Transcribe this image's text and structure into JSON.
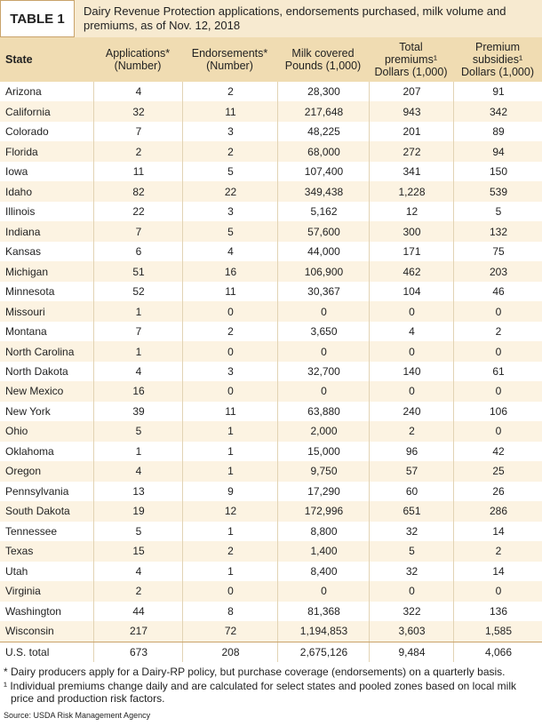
{
  "header": {
    "label": "TABLE 1",
    "title": "Dairy Revenue Protection applications, endorsements purchased, milk volume and premiums, as of Nov. 12, 2018"
  },
  "table": {
    "columns": [
      [
        "State"
      ],
      [
        "Applications*",
        "(Number)"
      ],
      [
        "Endorsements*",
        "(Number)"
      ],
      [
        "Milk covered",
        "Pounds (1,000)"
      ],
      [
        "Total",
        "premiums¹",
        "Dollars (1,000)"
      ],
      [
        "Premium",
        "subsidies¹",
        "Dollars (1,000)"
      ]
    ],
    "rows": [
      [
        "Arizona",
        "4",
        "2",
        "28,300",
        "207",
        "91"
      ],
      [
        "California",
        "32",
        "11",
        "217,648",
        "943",
        "342"
      ],
      [
        "Colorado",
        "7",
        "3",
        "48,225",
        "201",
        "89"
      ],
      [
        "Florida",
        "2",
        "2",
        "68,000",
        "272",
        "94"
      ],
      [
        "Iowa",
        "11",
        "5",
        "107,400",
        "341",
        "150"
      ],
      [
        "Idaho",
        "82",
        "22",
        "349,438",
        "1,228",
        "539"
      ],
      [
        "Illinois",
        "22",
        "3",
        "5,162",
        "12",
        "5"
      ],
      [
        "Indiana",
        "7",
        "5",
        "57,600",
        "300",
        "132"
      ],
      [
        "Kansas",
        "6",
        "4",
        "44,000",
        "171",
        "75"
      ],
      [
        "Michigan",
        "51",
        "16",
        "106,900",
        "462",
        "203"
      ],
      [
        "Minnesota",
        "52",
        "11",
        "30,367",
        "104",
        "46"
      ],
      [
        "Missouri",
        "1",
        "0",
        "0",
        "0",
        "0"
      ],
      [
        "Montana",
        "7",
        "2",
        "3,650",
        "4",
        "2"
      ],
      [
        "North Carolina",
        "1",
        "0",
        "0",
        "0",
        "0"
      ],
      [
        "North Dakota",
        "4",
        "3",
        "32,700",
        "140",
        "61"
      ],
      [
        "New Mexico",
        "16",
        "0",
        "0",
        "0",
        "0"
      ],
      [
        "New York",
        "39",
        "11",
        "63,880",
        "240",
        "106"
      ],
      [
        "Ohio",
        "5",
        "1",
        "2,000",
        "2",
        "0"
      ],
      [
        "Oklahoma",
        "1",
        "1",
        "15,000",
        "96",
        "42"
      ],
      [
        "Oregon",
        "4",
        "1",
        "9,750",
        "57",
        "25"
      ],
      [
        "Pennsylvania",
        "13",
        "9",
        "17,290",
        "60",
        "26"
      ],
      [
        "South Dakota",
        "19",
        "12",
        "172,996",
        "651",
        "286"
      ],
      [
        "Tennessee",
        "5",
        "1",
        "8,800",
        "32",
        "14"
      ],
      [
        "Texas",
        "15",
        "2",
        "1,400",
        "5",
        "2"
      ],
      [
        "Utah",
        "4",
        "1",
        "8,400",
        "32",
        "14"
      ],
      [
        "Virginia",
        "2",
        "0",
        "0",
        "0",
        "0"
      ],
      [
        "Washington",
        "44",
        "8",
        "81,368",
        "322",
        "136"
      ],
      [
        "Wisconsin",
        "217",
        "72",
        "1,194,853",
        "3,603",
        "1,585"
      ],
      [
        "U.S. total",
        "673",
        "208",
        "2,675,126",
        "9,484",
        "4,066"
      ]
    ]
  },
  "footnotes": [
    "* Dairy producers apply for a Dairy-RP policy, but purchase coverage (endorsements) on a quarterly basis.",
    "¹ Individual premiums change daily and are calculated for select states and pooled zones based on local milk price and production risk factors."
  ],
  "source": "Source: USDA Risk Management Agency"
}
